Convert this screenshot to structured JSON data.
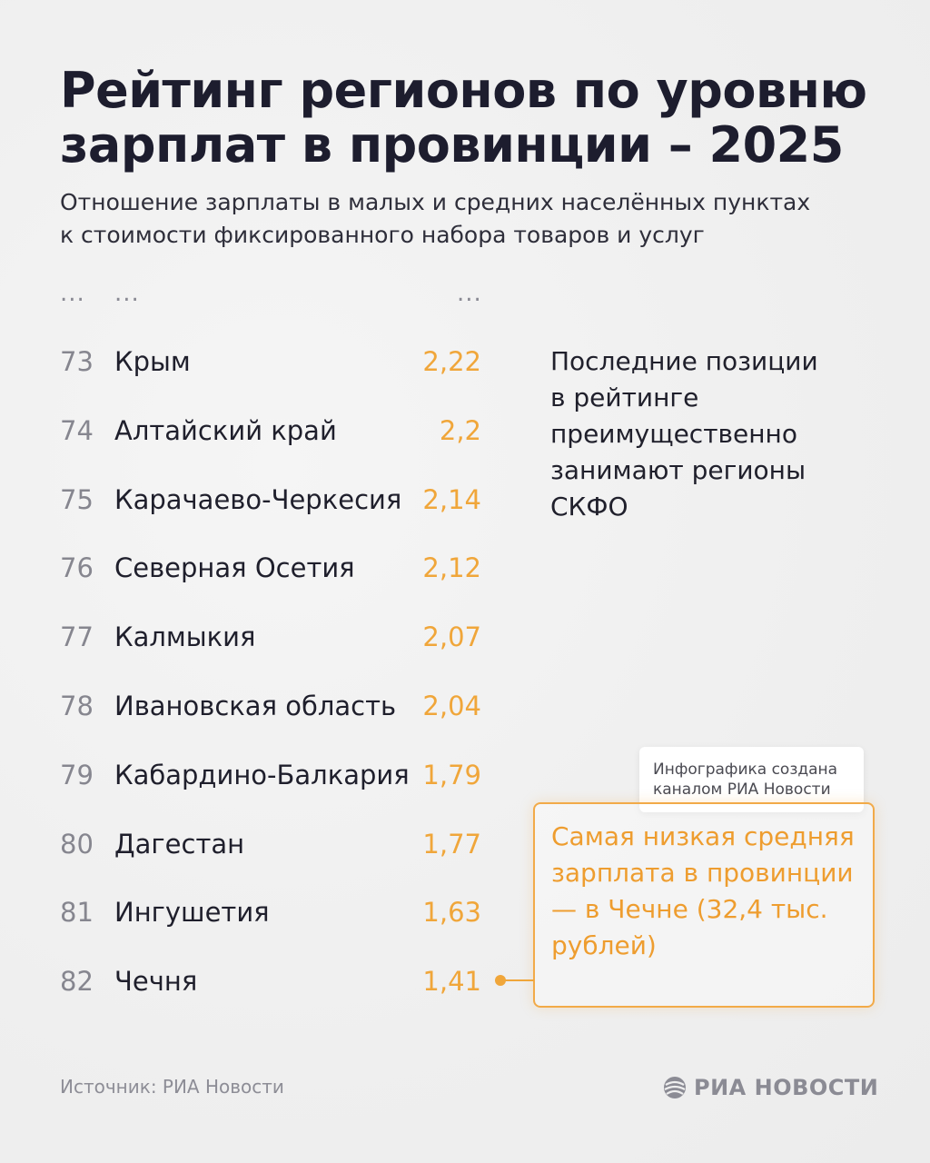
{
  "title": "Рейтинг регионов по уровню зарплат в провинции – 2025",
  "subtitle_line1": "Отношение зарплаты в малых и средних населённых пунктах",
  "subtitle_line2": "к стоимости фиксированного набора товаров и услуг",
  "ellipsis": "...",
  "note": "Последние позиции в рейтинге преимущественно занимают регионы СКФО",
  "credit_line1": "Инфографика создана",
  "credit_line2": "каналом РИА Новости",
  "callout": "Самая низкая средняя зарплата в провинции — в Чечне (32,4 тыс. рублей)",
  "source": "Источник: РИА Новости",
  "logo": {
    "text": "РИА НОВОСТИ",
    "icon": "ria-globe-icon"
  },
  "colors": {
    "accent": "#f0a63a",
    "text": "#1d1d2e",
    "muted": "#86868f",
    "background": "#efefef"
  },
  "chart_data": {
    "type": "table",
    "columns": [
      "rank",
      "region",
      "value"
    ],
    "rows": [
      {
        "rank": "73",
        "region": "Крым",
        "value": "2,22"
      },
      {
        "rank": "74",
        "region": "Алтайский край",
        "value": "2,2"
      },
      {
        "rank": "75",
        "region": "Карачаево-Черкесия",
        "value": "2,14"
      },
      {
        "rank": "76",
        "region": "Северная Осетия",
        "value": "2,12"
      },
      {
        "rank": "77",
        "region": "Калмыкия",
        "value": "2,07"
      },
      {
        "rank": "78",
        "region": "Ивановская область",
        "value": "2,04"
      },
      {
        "rank": "79",
        "region": "Кабардино-Балкария",
        "value": "1,79"
      },
      {
        "rank": "80",
        "region": "Дагестан",
        "value": "1,77"
      },
      {
        "rank": "81",
        "region": "Ингушетия",
        "value": "1,63"
      },
      {
        "rank": "82",
        "region": "Чечня",
        "value": "1,41"
      }
    ]
  }
}
